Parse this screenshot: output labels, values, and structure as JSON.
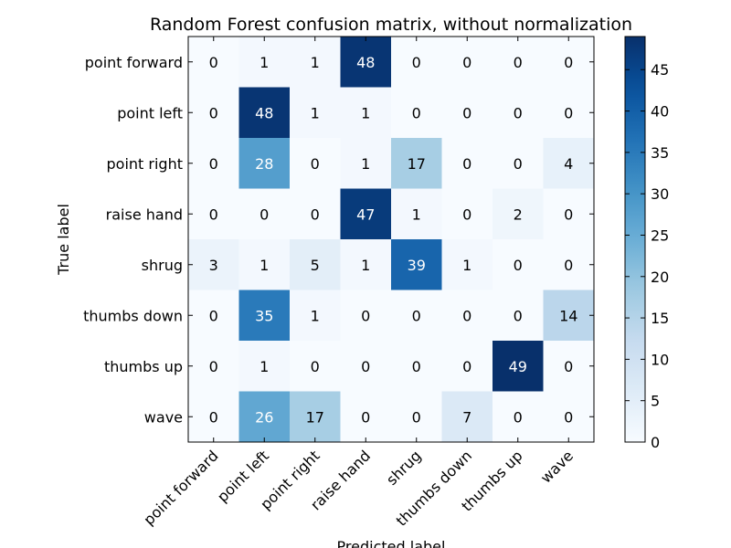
{
  "chart_data": {
    "type": "heatmap",
    "title": "Random Forest confusion matrix, without normalization",
    "xlabel": "Predicted label",
    "ylabel": "True label",
    "x_categories": [
      "point forward",
      "point left",
      "point right",
      "raise hand",
      "shrug",
      "thumbs down",
      "thumbs up",
      "wave"
    ],
    "y_categories": [
      "point forward",
      "point left",
      "point right",
      "raise hand",
      "shrug",
      "thumbs down",
      "thumbs up",
      "wave"
    ],
    "values": [
      [
        0,
        1,
        1,
        48,
        0,
        0,
        0,
        0
      ],
      [
        0,
        48,
        1,
        1,
        0,
        0,
        0,
        0
      ],
      [
        0,
        28,
        0,
        1,
        17,
        0,
        0,
        4
      ],
      [
        0,
        0,
        0,
        47,
        1,
        0,
        2,
        0
      ],
      [
        3,
        1,
        5,
        1,
        39,
        1,
        0,
        0
      ],
      [
        0,
        35,
        1,
        0,
        0,
        0,
        0,
        14
      ],
      [
        0,
        1,
        0,
        0,
        0,
        0,
        49,
        0
      ],
      [
        0,
        26,
        17,
        0,
        0,
        7,
        0,
        0
      ]
    ],
    "colormap": "Blues",
    "color_range": [
      0,
      49
    ],
    "colorbar_ticks": [
      0,
      5,
      10,
      15,
      20,
      25,
      30,
      35,
      40,
      45
    ]
  }
}
